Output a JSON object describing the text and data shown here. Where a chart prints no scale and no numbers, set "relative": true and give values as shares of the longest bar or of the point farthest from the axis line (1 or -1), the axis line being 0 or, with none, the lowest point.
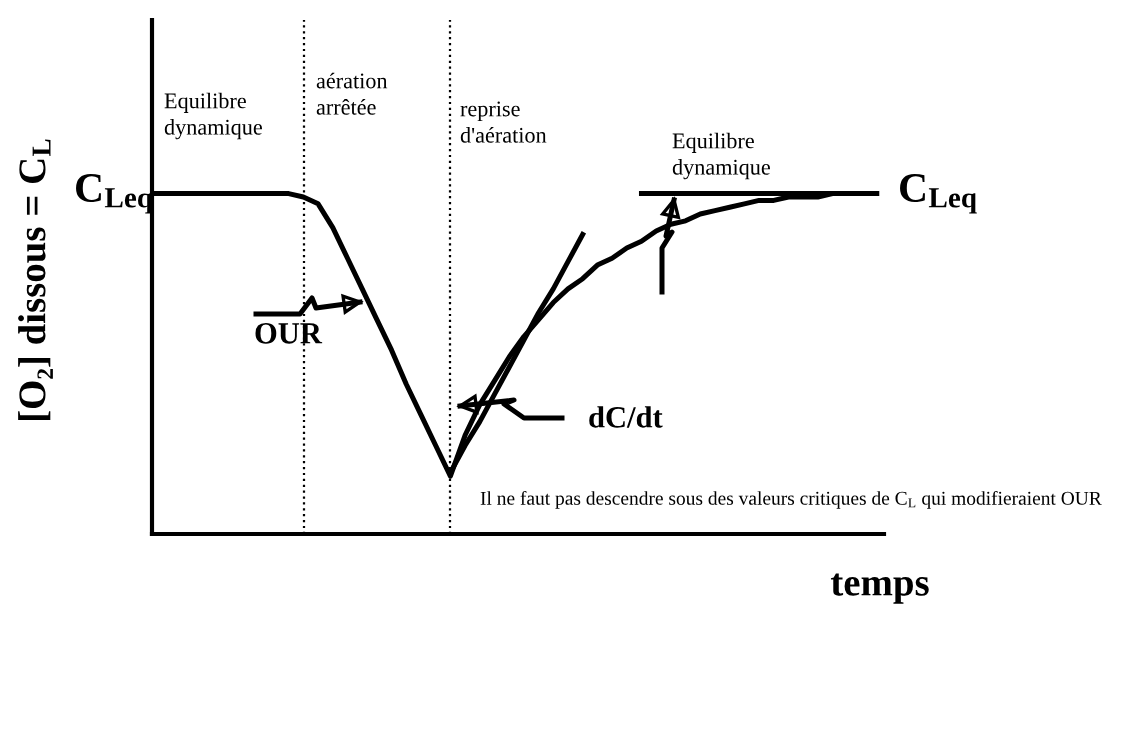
{
  "chart_data": {
    "type": "line",
    "relative": true,
    "ylabel": "[O₂] dissous = C$_{L}$",
    "xlabel": "temps",
    "categories": [
      null,
      null,
      null,
      null,
      null,
      null,
      null,
      null,
      null,
      null,
      null,
      null,
      null,
      null,
      null,
      null,
      null,
      null,
      null,
      null,
      null,
      null,
      null,
      null,
      null,
      null,
      null,
      null,
      null,
      null,
      null,
      null,
      null,
      null,
      null,
      null,
      null,
      null,
      null,
      null,
      null,
      null,
      null,
      null,
      null,
      null,
      null,
      null,
      null,
      null
    ],
    "series": [
      {
        "color": "#000000",
        "values": [
          1,
          1,
          1,
          1,
          1,
          1,
          1,
          1,
          1,
          1,
          0.99,
          0.97,
          0.9,
          0.81,
          0.72,
          0.63,
          0.54,
          0.44,
          0.35,
          0.26,
          0.17,
          0.29,
          0.38,
          0.45,
          0.52,
          0.58,
          0.63,
          0.68,
          0.72,
          0.75,
          0.79,
          0.81,
          0.84,
          0.86,
          0.89,
          0.91,
          0.92,
          0.94,
          0.95,
          0.96,
          0.97,
          0.98,
          0.98,
          0.99,
          0.99,
          0.99,
          1,
          1,
          1,
          1
        ]
      },
      {
        "color": "#000000",
        "values": [
          null,
          null,
          null,
          null,
          null,
          null,
          null,
          null,
          null,
          null,
          null,
          null,
          null,
          null,
          null,
          null,
          null,
          null,
          null,
          null,
          0.18,
          0.26,
          0.33,
          0.41,
          0.49,
          0.57,
          0.65,
          0.72,
          0.8,
          0.88,
          null,
          null,
          null,
          null,
          null,
          null,
          null,
          null,
          null,
          null,
          null,
          null,
          null,
          null,
          null,
          null,
          null,
          null,
          null,
          null
        ]
      },
      {
        "color": "#000000",
        "values": [
          null,
          null,
          null,
          null,
          null,
          null,
          null,
          null,
          null,
          null,
          null,
          null,
          null,
          null,
          null,
          null,
          null,
          null,
          null,
          null,
          null,
          null,
          null,
          null,
          null,
          null,
          null,
          null,
          null,
          null,
          null,
          null,
          null,
          1,
          1,
          1,
          1,
          1,
          1,
          1,
          1,
          1,
          1,
          1,
          1,
          1,
          1,
          1,
          1,
          1
        ]
      }
    ],
    "annotations": [
      "Equilibre\ndynamique",
      "aération\narrêtée",
      "reprise\nd'aération",
      "Equilibre\ndynamique",
      "C$_{Leq}$",
      "C$_{Leq}$",
      "OUR",
      "dC/dt",
      "Il ne faut pas descendre sous des valeurs critiques de C$_{L}$ qui modifieraient OUR"
    ],
    "grid": false,
    "legend": false,
    "marker": "none",
    "line_style": "solid"
  }
}
